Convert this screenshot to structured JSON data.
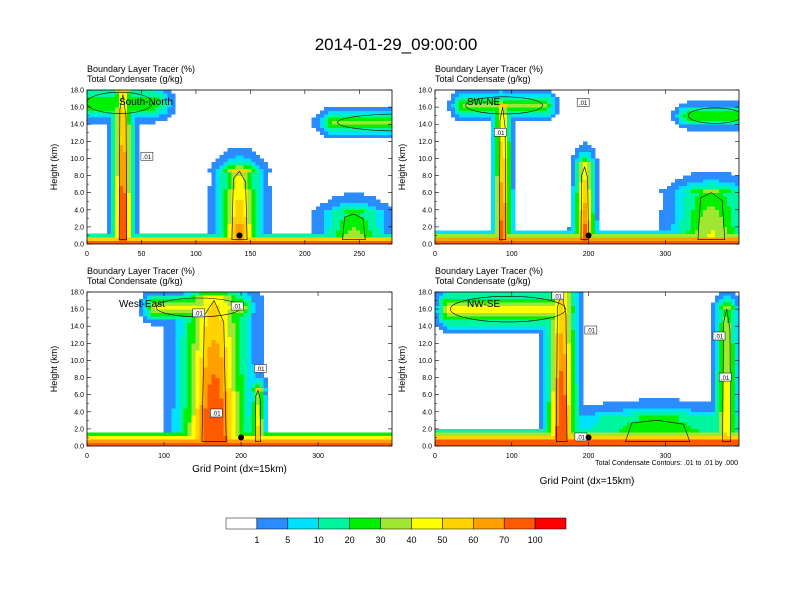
{
  "title": "2014-01-29_09:00:00",
  "xlabel": "Grid Point (dx=15km)",
  "contour_note": "Total Condensate Contours: .01 to .01 by .000",
  "colorbar": {
    "colors": [
      "#ffffff",
      "#2a8cff",
      "#00e1ff",
      "#00f5a0",
      "#00f000",
      "#a0e632",
      "#ffff00",
      "#ffd200",
      "#ffa000",
      "#ff5a00",
      "#ff0000"
    ],
    "labels": [
      "1",
      "5",
      "10",
      "20",
      "30",
      "40",
      "50",
      "60",
      "70",
      "100"
    ]
  },
  "chart_data": [
    {
      "type": "heatmap",
      "panel_label": "South-North",
      "title_line1": "Boundary Layer Tracer   (%)",
      "title_line2": "Total Condensate   (g/kg)",
      "ylabel": "Height (km)",
      "ylim": [
        0,
        18
      ],
      "yticks": [
        "0.0",
        "2.0",
        "4.0",
        "6.0",
        "8.0",
        "10.0",
        "12.0",
        "14.0",
        "16.0",
        "18.0"
      ],
      "xlim": [
        0,
        280
      ],
      "xticks": [
        0,
        50,
        100,
        150,
        200,
        250
      ],
      "xlabel": "",
      "contour_labels": [
        {
          "x": 55,
          "y": 10.2,
          "text": ".01"
        }
      ],
      "marker": {
        "x": 140,
        "y": 1.0
      },
      "tracer_features": [
        {
          "kind": "boundary_layer",
          "x0": 0,
          "x1": 280,
          "top": 1.2,
          "peak": 100
        },
        {
          "kind": "plume",
          "x": 33,
          "width": 10,
          "top": 17.5,
          "peak": 90
        },
        {
          "kind": "anvil",
          "x0": 0,
          "x1": 60,
          "y": 16.5,
          "thick": 2.5,
          "peak": 30
        },
        {
          "kind": "plume",
          "x": 140,
          "width": 20,
          "top": 8.5,
          "peak": 70
        },
        {
          "kind": "anvil",
          "x0": 230,
          "x1": 350,
          "y": 14.2,
          "thick": 2.0,
          "peak": 35
        },
        {
          "kind": "plume",
          "x": 245,
          "width": 30,
          "top": 3.5,
          "peak": 40
        }
      ]
    },
    {
      "type": "heatmap",
      "panel_label": "SW-NE",
      "title_line1": "Boundary Layer Tracer   (%)",
      "title_line2": "Total Condensate   (g/kg)",
      "ylabel": "Height (km)",
      "ylim": [
        0,
        18
      ],
      "yticks": [
        "0.0",
        "2.0",
        "4.0",
        "6.0",
        "8.0",
        "10.0",
        "12.0",
        "14.0",
        "16.0",
        "18.0"
      ],
      "xlim": [
        0,
        396
      ],
      "xticks": [
        0,
        100,
        200,
        300
      ],
      "xlabel": "",
      "contour_labels": [
        {
          "x": 85,
          "y": 13.0,
          "text": ".01"
        },
        {
          "x": 193,
          "y": 16.5,
          "text": ".01"
        }
      ],
      "marker": {
        "x": 200,
        "y": 1.0
      },
      "tracer_features": [
        {
          "kind": "boundary_layer",
          "x0": 0,
          "x1": 396,
          "top": 1.5,
          "peak": 100
        },
        {
          "kind": "plume",
          "x": 88,
          "width": 12,
          "top": 16.0,
          "peak": 80
        },
        {
          "kind": "anvil",
          "x0": 40,
          "x1": 140,
          "y": 16.2,
          "thick": 2.0,
          "peak": 35
        },
        {
          "kind": "plume",
          "x": 195,
          "width": 14,
          "top": 9.0,
          "peak": 80
        },
        {
          "kind": "anvil",
          "x0": 330,
          "x1": 400,
          "y": 15.0,
          "thick": 1.8,
          "peak": 25
        },
        {
          "kind": "plume",
          "x": 360,
          "width": 50,
          "top": 6.0,
          "peak": 45
        }
      ]
    },
    {
      "type": "heatmap",
      "panel_label": "West-East",
      "title_line1": "Boundary Layer Tracer   (%)",
      "title_line2": "Total Condensate   (g/kg)",
      "ylabel": "Height (km)",
      "ylim": [
        0,
        18
      ],
      "yticks": [
        "0.0",
        "2.0",
        "4.0",
        "6.0",
        "8.0",
        "10.0",
        "12.0",
        "14.0",
        "16.0",
        "18.0"
      ],
      "xlim": [
        0,
        396
      ],
      "xticks": [
        0,
        100,
        200,
        300
      ],
      "xlabel": "Grid Point (dx=15km)",
      "contour_labels": [
        {
          "x": 145,
          "y": 15.5,
          "text": ".01"
        },
        {
          "x": 195,
          "y": 16.3,
          "text": ".01"
        },
        {
          "x": 225,
          "y": 9.0,
          "text": ".01"
        },
        {
          "x": 168,
          "y": 3.8,
          "text": ".01"
        }
      ],
      "marker": {
        "x": 200,
        "y": 1.0
      },
      "tracer_features": [
        {
          "kind": "boundary_layer",
          "x0": 0,
          "x1": 396,
          "top": 1.8,
          "peak": 100
        },
        {
          "kind": "plume",
          "x": 165,
          "width": 45,
          "top": 17.0,
          "peak": 90
        },
        {
          "kind": "anvil",
          "x0": 90,
          "x1": 200,
          "y": 16.2,
          "thick": 2.2,
          "peak": 40
        },
        {
          "kind": "plume",
          "x": 222,
          "width": 10,
          "top": 6.5,
          "peak": 60
        }
      ]
    },
    {
      "type": "heatmap",
      "panel_label": "NW-SE",
      "title_line1": "Boundary Layer Tracer   (%)",
      "title_line2": "Total Condensate   (g/kg)",
      "ylabel": "Height (km)",
      "ylim": [
        0,
        18
      ],
      "yticks": [
        "0.0",
        "2.0",
        "4.0",
        "6.0",
        "8.0",
        "10.0",
        "12.0",
        "14.0",
        "16.0",
        "18.0"
      ],
      "xlim": [
        0,
        396
      ],
      "xticks": [
        0,
        100,
        200,
        300
      ],
      "xlabel": "Grid Point (dx=15km)",
      "contour_labels": [
        {
          "x": 160,
          "y": 17.5,
          "text": ".01"
        },
        {
          "x": 203,
          "y": 13.5,
          "text": ".01"
        },
        {
          "x": 370,
          "y": 12.8,
          "text": ".01"
        },
        {
          "x": 378,
          "y": 8.0,
          "text": ".01"
        },
        {
          "x": 190,
          "y": 1.0,
          "text": ".01"
        }
      ],
      "marker": {
        "x": 200,
        "y": 1.0
      },
      "tracer_features": [
        {
          "kind": "boundary_layer",
          "x0": 0,
          "x1": 396,
          "top": 2.2,
          "peak": 100
        },
        {
          "kind": "plume",
          "x": 165,
          "width": 20,
          "top": 18.0,
          "peak": 90
        },
        {
          "kind": "anvil",
          "x0": 20,
          "x1": 170,
          "y": 16.0,
          "thick": 3.0,
          "peak": 45
        },
        {
          "kind": "plume",
          "x": 380,
          "width": 15,
          "top": 16.0,
          "peak": 55
        },
        {
          "kind": "plume",
          "x": 290,
          "width": 120,
          "top": 3.0,
          "peak": 40
        }
      ]
    }
  ]
}
